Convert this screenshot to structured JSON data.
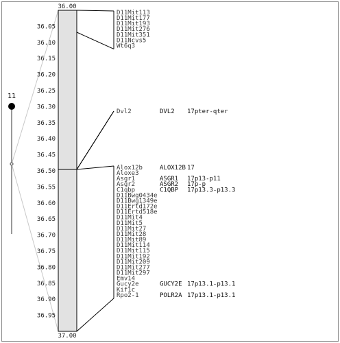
{
  "chromosome": {
    "name": "11",
    "range_start": "36.00",
    "range_end": "37.00",
    "axis_ticks": [
      "36.00",
      "36.05",
      "36.10",
      "36.15",
      "36.20",
      "36.25",
      "36.30",
      "36.35",
      "36.40",
      "36.45",
      "36.50",
      "36.55",
      "36.60",
      "36.65",
      "36.70",
      "36.75",
      "36.80",
      "36.85",
      "36.90",
      "36.95",
      "37.00"
    ]
  },
  "groups": [
    {
      "id": "g1",
      "markers": [
        {
          "mouse": "D11Mit113"
        },
        {
          "mouse": "D11Mit177"
        },
        {
          "mouse": "D11Mit193"
        },
        {
          "mouse": "D11Mit276"
        },
        {
          "mouse": "D11Mit351"
        },
        {
          "mouse": "D11Ncvs5"
        },
        {
          "mouse": "Wt6q3"
        }
      ]
    },
    {
      "id": "g2",
      "markers": [
        {
          "mouse": "Dvl2",
          "human": "DVL2",
          "location": "17pter-qter"
        }
      ]
    },
    {
      "id": "g3",
      "markers": [
        {
          "mouse": "Alox12b",
          "human": "ALOX12B",
          "location": "17"
        },
        {
          "mouse": "Aloxe3"
        },
        {
          "mouse": "Asgr1",
          "human": "ASGR1",
          "location": "17p13-p11"
        },
        {
          "mouse": "Asgr2",
          "human": "ASGR2",
          "location": "17p-p"
        },
        {
          "mouse": "C1qbp",
          "human": "C1QBP",
          "location": "17p13.3-p13.3"
        },
        {
          "mouse": "D11Bwg0434e"
        },
        {
          "mouse": "D11Bwg1349e"
        },
        {
          "mouse": "D11Ertd172e"
        },
        {
          "mouse": "D11Ertd518e"
        },
        {
          "mouse": "D11Mit4"
        },
        {
          "mouse": "D11Mit5"
        },
        {
          "mouse": "D11Mit27"
        },
        {
          "mouse": "D11Mit28"
        },
        {
          "mouse": "D11Mit89"
        },
        {
          "mouse": "D11Mit114"
        },
        {
          "mouse": "D11Mit115"
        },
        {
          "mouse": "D11Mit192"
        },
        {
          "mouse": "D11Mit209"
        },
        {
          "mouse": "D11Mit277"
        },
        {
          "mouse": "D11Mit297"
        },
        {
          "mouse": "Emv14"
        },
        {
          "mouse": "Gucy2e",
          "human": "GUCY2E",
          "location": "17p13.1-p13.1"
        },
        {
          "mouse": "Kif1c"
        },
        {
          "mouse": "Rpo2-1",
          "human": "POLR2A",
          "location": "17p13.1-p13.1"
        }
      ]
    }
  ]
}
